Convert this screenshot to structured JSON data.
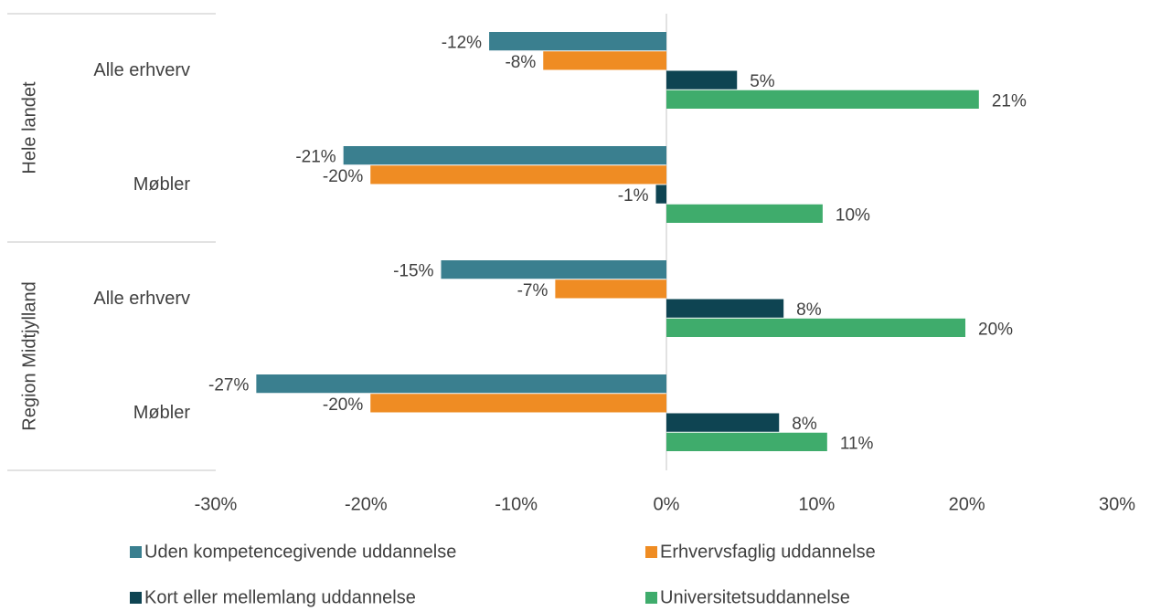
{
  "chart_data": {
    "type": "barh",
    "category_groups": [
      {
        "name": "Hele landet",
        "categories": [
          "Alle erhverv",
          "Møbler"
        ]
      },
      {
        "name": "Region Midtjylland",
        "categories": [
          "Alle erhverv",
          "Møbler"
        ]
      }
    ],
    "series": [
      {
        "name": "Uden kompetencegivende uddannelse",
        "color": "#3a7f8f",
        "values": [
          -11.8,
          -21.5,
          -15.0,
          -27.3
        ],
        "value_labels": [
          "-12%",
          "-21%",
          "-15%",
          "-27%"
        ]
      },
      {
        "name": "Erhvervsfaglig uddannelse",
        "color": "#ef8c23",
        "values": [
          -8.2,
          -19.7,
          -7.4,
          -19.7
        ],
        "value_labels": [
          "-8%",
          "-20%",
          "-7%",
          "-20%"
        ]
      },
      {
        "name": "Kort eller mellemlang uddannelse",
        "color": "#0e4452",
        "values": [
          4.7,
          -0.7,
          7.8,
          7.5
        ],
        "value_labels": [
          "5%",
          "-1%",
          "8%",
          "8%"
        ]
      },
      {
        "name": "Universitetsuddannelse",
        "color": "#3fac6c",
        "values": [
          20.8,
          10.4,
          19.9,
          10.7
        ],
        "value_labels": [
          "21%",
          "10%",
          "20%",
          "11%"
        ]
      }
    ],
    "xlim": [
      -30,
      30
    ],
    "xticks": [
      {
        "value": -30,
        "label": "-30%"
      },
      {
        "value": -20,
        "label": "-20%"
      },
      {
        "value": -10,
        "label": "-10%"
      },
      {
        "value": 0,
        "label": "0%"
      },
      {
        "value": 10,
        "label": "10%"
      },
      {
        "value": 20,
        "label": "20%"
      },
      {
        "value": 30,
        "label": "30%"
      }
    ],
    "legend": "bottom"
  }
}
